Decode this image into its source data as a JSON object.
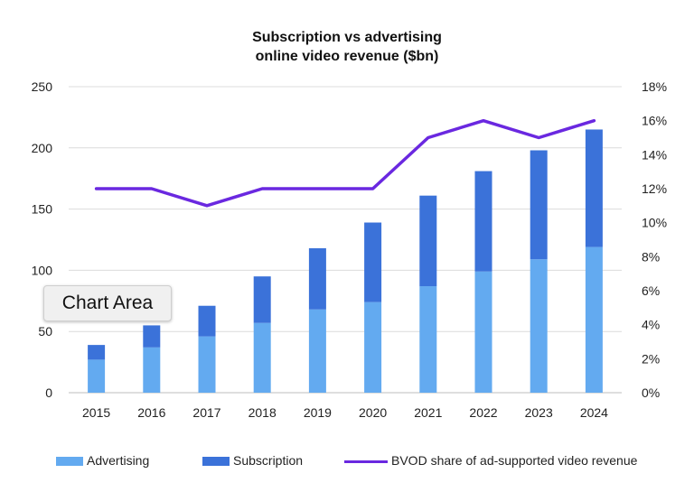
{
  "chart_data": {
    "type": "bar",
    "stacked": true,
    "title_lines": [
      "Subscription vs advertising",
      "online video revenue ($bn)"
    ],
    "categories": [
      "2015",
      "2016",
      "2017",
      "2018",
      "2019",
      "2020",
      "2021",
      "2022",
      "2023",
      "2024"
    ],
    "series": [
      {
        "name": "Advertising",
        "type": "bar",
        "axis": "left",
        "color": "#63aaf0",
        "values": [
          27,
          37,
          46,
          57,
          68,
          74,
          87,
          99,
          109,
          119
        ]
      },
      {
        "name": "Subscription",
        "type": "bar",
        "axis": "left",
        "color": "#3b72d9",
        "values": [
          12,
          18,
          25,
          38,
          50,
          65,
          74,
          82,
          89,
          96
        ]
      },
      {
        "name": "BVOD share of ad-supported video revenue",
        "type": "line",
        "axis": "right",
        "color": "#6a28e0",
        "values": [
          12,
          12,
          11,
          12,
          12,
          12,
          15,
          16,
          15,
          16
        ]
      }
    ],
    "ylim_left": [
      0,
      250
    ],
    "yticks_left": [
      "0",
      "50",
      "100",
      "150",
      "200",
      "250"
    ],
    "ylim_right": [
      0,
      18
    ],
    "yticks_right": [
      "0%",
      "2%",
      "4%",
      "6%",
      "8%",
      "10%",
      "12%",
      "14%",
      "16%",
      "18%"
    ],
    "grid": true,
    "legend_position": "bottom"
  },
  "tooltip": {
    "label": "Chart Area"
  }
}
